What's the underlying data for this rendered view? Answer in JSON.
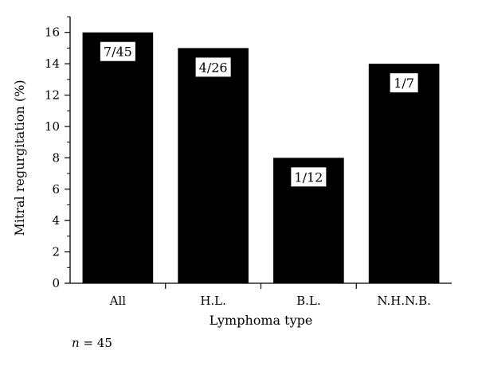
{
  "chart_data": {
    "type": "bar",
    "categories": [
      "All",
      "H.L.",
      "B.L.",
      "N.H.N.B."
    ],
    "values": [
      16,
      15,
      8,
      14
    ],
    "data_labels": [
      "7/45",
      "4/26",
      "1/12",
      "1/7"
    ],
    "xlabel": "Lymphoma type",
    "ylabel": "Mitral regurgitation (%)",
    "ylim": [
      0,
      17
    ],
    "yticks": [
      0,
      2,
      4,
      6,
      8,
      10,
      12,
      14,
      16
    ],
    "grid": false,
    "bar_color": "#000000",
    "label_box_color": "#ffffff"
  },
  "note": {
    "variable": "n",
    "rest": " = 45"
  }
}
